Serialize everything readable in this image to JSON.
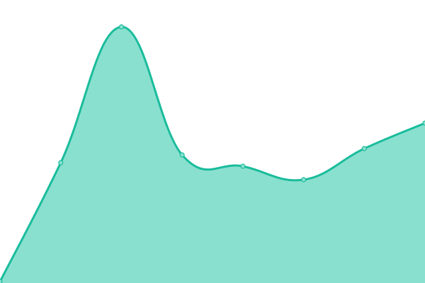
{
  "chart_data": {
    "type": "area",
    "x": [
      0,
      1,
      2,
      3,
      4,
      5,
      6,
      7
    ],
    "values": [
      2,
      170,
      362,
      181,
      165,
      146,
      190,
      226
    ],
    "ylim": [
      0,
      400
    ],
    "xlim": [
      0,
      7
    ],
    "smooth": true,
    "markers": true,
    "grid": false,
    "axes_visible": false,
    "colors": {
      "line": "#1abc9c",
      "fill": "#8ae0cf",
      "marker_fill": "#8ae0cf"
    }
  }
}
